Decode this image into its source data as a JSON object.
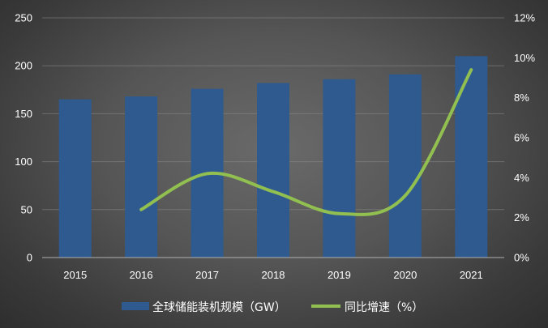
{
  "chart_data": {
    "type": "bar",
    "categories": [
      "2015",
      "2016",
      "2017",
      "2018",
      "2019",
      "2020",
      "2021"
    ],
    "series": [
      {
        "name": "全球储能装机规模（GW）",
        "type": "bar",
        "axis": "left",
        "color": "#2f5a8f",
        "values": [
          165,
          168,
          176,
          182,
          186,
          191,
          210
        ]
      },
      {
        "name": "同比增速（%）",
        "type": "line",
        "axis": "right",
        "color": "#92c050",
        "values": [
          null,
          2.4,
          4.2,
          3.3,
          2.2,
          3.1,
          9.4
        ]
      }
    ],
    "y_left": {
      "min": 0,
      "max": 250,
      "ticks": [
        "0",
        "50",
        "100",
        "150",
        "200",
        "250"
      ],
      "tick_values": [
        0,
        50,
        100,
        150,
        200,
        250
      ]
    },
    "y_right": {
      "min": 0,
      "max": 12,
      "ticks": [
        "0%",
        "2%",
        "4%",
        "6%",
        "8%",
        "10%",
        "12%"
      ],
      "tick_values": [
        0,
        2,
        4,
        6,
        8,
        10,
        12
      ]
    },
    "grid": "horizontal",
    "legend": "bottom"
  }
}
